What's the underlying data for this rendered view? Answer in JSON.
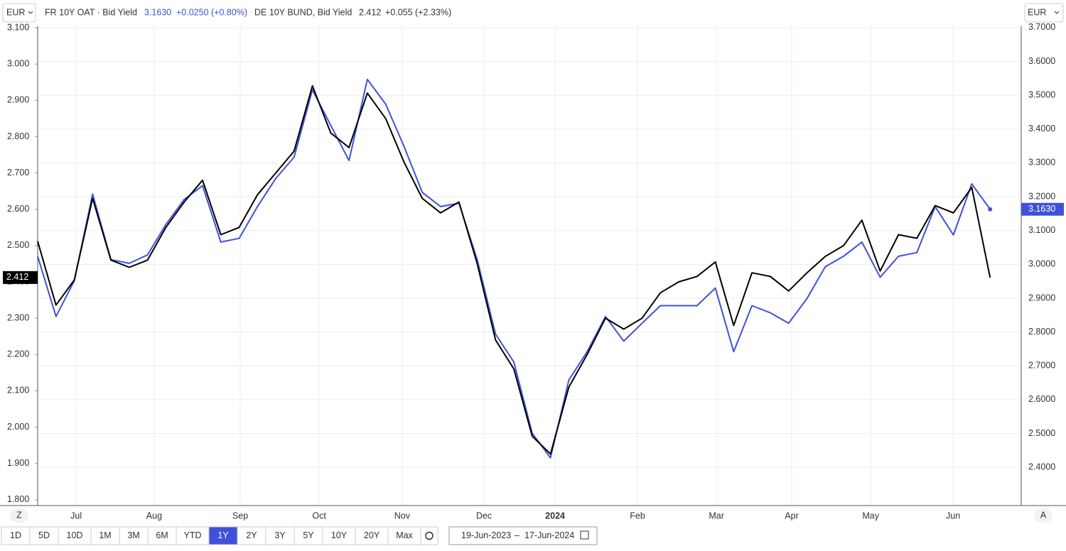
{
  "chart_data": {
    "type": "line",
    "currency_left": "EUR",
    "currency_right": "EUR",
    "xlim": [
      0,
      53.7
    ],
    "xticks": [
      {
        "value": 2.1,
        "label": "Jul"
      },
      {
        "value": 6.36,
        "label": "Aug"
      },
      {
        "value": 11.06,
        "label": "Sep"
      },
      {
        "value": 15.37,
        "label": "Oct"
      },
      {
        "value": 19.9,
        "label": "Nov"
      },
      {
        "value": 24.37,
        "label": "Dec"
      },
      {
        "value": 28.25,
        "label": "2024"
      },
      {
        "value": 32.75,
        "label": "Feb"
      },
      {
        "value": 37.06,
        "label": "Mar"
      },
      {
        "value": 41.17,
        "label": "Apr"
      },
      {
        "value": 45.48,
        "label": "May"
      },
      {
        "value": 49.98,
        "label": "Jun"
      }
    ],
    "ylim": [
      1.784,
      3.104
    ],
    "yticks": [
      {
        "value": 1.8,
        "label": "1.800"
      },
      {
        "value": 1.9,
        "label": "1.900"
      },
      {
        "value": 2.0,
        "label": "2.000"
      },
      {
        "value": 2.1,
        "label": "2.100"
      },
      {
        "value": 2.2,
        "label": "2.200"
      },
      {
        "value": 2.3,
        "label": "2.300"
      },
      {
        "value": 2.4,
        "label": "2.400"
      },
      {
        "value": 2.5,
        "label": "2.500"
      },
      {
        "value": 2.6,
        "label": "2.600"
      },
      {
        "value": 2.7,
        "label": "2.700"
      },
      {
        "value": 2.8,
        "label": "2.800"
      },
      {
        "value": 2.9,
        "label": "2.900"
      },
      {
        "value": 3.0,
        "label": "3.000"
      },
      {
        "value": 3.1,
        "label": "3.100"
      }
    ],
    "y2lim": [
      2.287,
      3.704
    ],
    "y2ticks": [
      {
        "value": 2.4,
        "label": "2.4000"
      },
      {
        "value": 2.5,
        "label": "2.5000"
      },
      {
        "value": 2.6,
        "label": "2.6000"
      },
      {
        "value": 2.7,
        "label": "2.7000"
      },
      {
        "value": 2.8,
        "label": "2.8000"
      },
      {
        "value": 2.9,
        "label": "2.9000"
      },
      {
        "value": 3.0,
        "label": "3.0000"
      },
      {
        "value": 3.1,
        "label": "3.1000"
      },
      {
        "value": 3.2,
        "label": "3.2000"
      },
      {
        "value": 3.3,
        "label": "3.3000"
      },
      {
        "value": 3.4,
        "label": "3.4000"
      },
      {
        "value": 3.5,
        "label": "3.5000"
      },
      {
        "value": 3.6,
        "label": "3.6000"
      },
      {
        "value": 3.7,
        "label": "3.7000"
      }
    ],
    "grid": true,
    "series": [
      {
        "name": "FR 10Y OAT · Bid Yield",
        "color": "#3f51d9",
        "axis": "y2",
        "last_label": "3.1630",
        "change": "+0.0250 (+0.80%)",
        "values": [
          3.024,
          2.846,
          2.951,
          3.208,
          3.014,
          3.003,
          3.028,
          3.118,
          3.192,
          3.233,
          3.066,
          3.077,
          3.171,
          3.254,
          3.317,
          3.516,
          3.411,
          3.307,
          3.547,
          3.474,
          3.349,
          3.213,
          3.171,
          3.181,
          3.014,
          2.794,
          2.711,
          2.501,
          2.428,
          2.658,
          2.742,
          2.846,
          2.773,
          2.826,
          2.878,
          2.878,
          2.878,
          2.93,
          2.742,
          2.878,
          2.857,
          2.826,
          2.899,
          2.993,
          3.024,
          3.066,
          2.962,
          3.024,
          3.035,
          3.171,
          3.087,
          3.238,
          3.163
        ]
      },
      {
        "name": "DE 10Y BUND, Bid Yield",
        "color": "#000000",
        "axis": "y",
        "last_label": "2.412",
        "change": "+0.055 (+2.33%)",
        "values": [
          2.512,
          2.336,
          2.405,
          2.63,
          2.46,
          2.44,
          2.46,
          2.55,
          2.62,
          2.68,
          2.53,
          2.55,
          2.64,
          2.7,
          2.76,
          2.94,
          2.81,
          2.77,
          2.92,
          2.85,
          2.73,
          2.63,
          2.59,
          2.62,
          2.45,
          2.24,
          2.16,
          1.975,
          1.926,
          2.11,
          2.2,
          2.3,
          2.27,
          2.3,
          2.37,
          2.4,
          2.415,
          2.455,
          2.28,
          2.425,
          2.415,
          2.375,
          2.425,
          2.47,
          2.5,
          2.57,
          2.43,
          2.53,
          2.52,
          2.61,
          2.59,
          2.66,
          2.412
        ]
      }
    ],
    "left_button": "Z",
    "right_button": "A",
    "ranges": [
      "1D",
      "5D",
      "10D",
      "1M",
      "3M",
      "6M",
      "YTD",
      "1Y",
      "2Y",
      "3Y",
      "5Y",
      "10Y",
      "20Y",
      "Max"
    ],
    "selected_range": "1Y",
    "date_from": "19-Jun-2023",
    "date_sep": "–",
    "date_to": "17-Jun-2024"
  }
}
